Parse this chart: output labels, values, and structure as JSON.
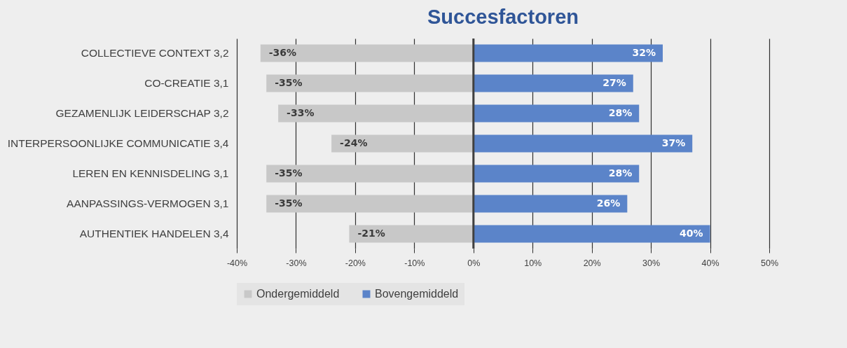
{
  "chart_data": {
    "type": "bar",
    "orientation": "horizontal",
    "title": "Succesfactoren",
    "categories": [
      "COLLECTIEVE CONTEXT 3,2",
      "CO-CREATIE 3,1",
      "GEZAMENLIJK LEIDERSCHAP 3,2",
      "INTERPERSOONLIJKE COMMUNICATIE 3,4",
      "LEREN EN KENNISDELING 3,1",
      "AANPASSINGS-VERMOGEN 3,1",
      "AUTHENTIEK HANDELEN 3,4"
    ],
    "series": [
      {
        "name": "Ondergemiddeld",
        "color": "#c8c8c8",
        "values": [
          -36,
          -35,
          -33,
          -24,
          -35,
          -35,
          -21
        ],
        "value_labels": [
          "-36%",
          "-35%",
          "-33%",
          "-24%",
          "-35%",
          "-35%",
          "-21%"
        ]
      },
      {
        "name": "Bovengemiddeld",
        "color": "#5b84c9",
        "values": [
          32,
          27,
          28,
          37,
          28,
          26,
          40
        ],
        "value_labels": [
          "32%",
          "27%",
          "28%",
          "37%",
          "28%",
          "26%",
          "40%"
        ]
      }
    ],
    "xlim": [
      -40,
      50
    ],
    "xticks": [
      {
        "value": -40,
        "label": "-40%"
      },
      {
        "value": -30,
        "label": "-30%"
      },
      {
        "value": -20,
        "label": "-20%"
      },
      {
        "value": -10,
        "label": "-10%"
      },
      {
        "value": 0,
        "label": "0%"
      },
      {
        "value": 10,
        "label": "10%"
      },
      {
        "value": 20,
        "label": "20%"
      },
      {
        "value": 30,
        "label": "30%"
      },
      {
        "value": 40,
        "label": "40%"
      },
      {
        "value": 50,
        "label": "50%"
      }
    ],
    "grid": "x",
    "legend": "bottom",
    "stacked": true,
    "ref_lines": [
      {
        "axis": "x",
        "value": 0,
        "color": "#404040"
      }
    ]
  }
}
